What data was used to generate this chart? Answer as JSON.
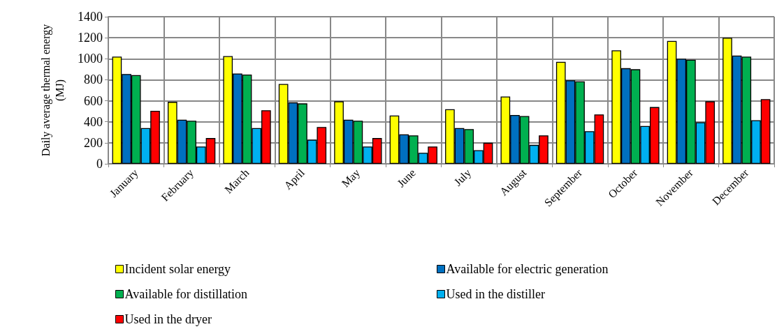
{
  "chart_data": {
    "type": "bar",
    "ylabel": "Daily average thermal energy (MJ)",
    "categories": [
      "January",
      "February",
      "March",
      "April",
      "May",
      "June",
      "July",
      "August",
      "September",
      "October",
      "November",
      "December"
    ],
    "series": [
      {
        "name": "Incident solar energy",
        "color": "#ffff00",
        "values": [
          1020,
          590,
          1025,
          760,
          595,
          460,
          520,
          640,
          970,
          1080,
          1170,
          1200
        ]
      },
      {
        "name": "Available for electric generation",
        "color": "#0070c0",
        "values": [
          855,
          420,
          860,
          585,
          420,
          280,
          340,
          465,
          795,
          910,
          1000,
          1030
        ]
      },
      {
        "name": "Available for distillation",
        "color": "#00b050",
        "values": [
          845,
          410,
          850,
          575,
          410,
          270,
          330,
          455,
          785,
          900,
          990,
          1020
        ]
      },
      {
        "name": "Used in the distiller",
        "color": "#00b0f0",
        "values": [
          340,
          165,
          340,
          230,
          165,
          105,
          130,
          180,
          310,
          360,
          395,
          415
        ]
      },
      {
        "name": "Used in the dryer",
        "color": "#ff0000",
        "values": [
          505,
          245,
          510,
          350,
          245,
          165,
          200,
          270,
          470,
          540,
          595,
          615
        ]
      }
    ],
    "ylim": [
      0,
      1400
    ],
    "yticks": [
      0,
      200,
      400,
      600,
      800,
      1000,
      1200,
      1400
    ],
    "grid": true,
    "legend": "bottom"
  }
}
